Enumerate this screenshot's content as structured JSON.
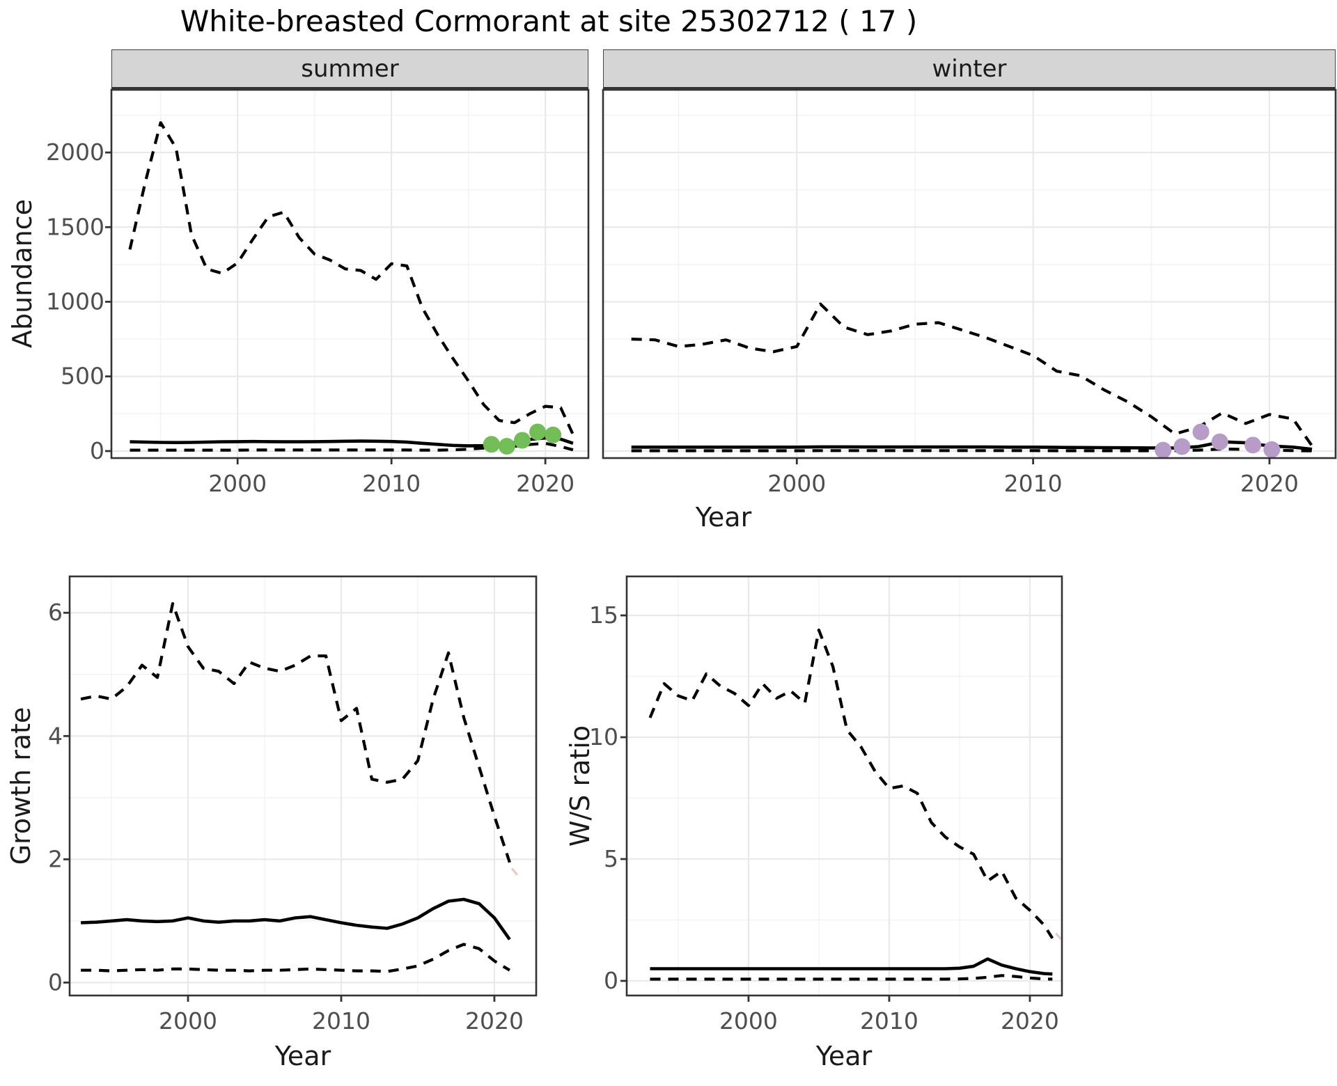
{
  "title": "White-breasted Cormorant at site 25302712 ( 17 )",
  "colors": {
    "summer_points": "#73BD59",
    "winter_points": "#B89CC8",
    "line": "#000000",
    "strip_bg": "#D5D5D5",
    "grid_major": "#E9E9E9",
    "grid_minor": "#F2F2F2",
    "panel_border": "#333333",
    "axis_text": "#4D4D4D"
  },
  "chart_data": [
    {
      "id": "summer",
      "type": "line",
      "title": "summer",
      "xlabel": "Year",
      "ylabel": "Abundance",
      "xlim": [
        1991.8,
        2022.8
      ],
      "ylim": [
        -47,
        2420
      ],
      "x_ticks": [
        2000,
        2010,
        2020
      ],
      "y_ticks": [
        0,
        500,
        1000,
        1500,
        2000
      ],
      "x_minor": [
        1995,
        2005,
        2015
      ],
      "y_minor": [
        250,
        750,
        1250,
        1750,
        2250
      ],
      "grid": true,
      "legend": "none",
      "x": [
        1993,
        1994,
        1995,
        1996,
        1997,
        1998,
        1999,
        2000,
        2001,
        2002,
        2003,
        2004,
        2005,
        2006,
        2007,
        2008,
        2009,
        2010,
        2011,
        2012,
        2013,
        2014,
        2015,
        2016,
        2017,
        2018,
        2019,
        2020,
        2021,
        2021.8
      ],
      "series": [
        {
          "name": "upper_95ci",
          "style": "dashed",
          "values": [
            1350,
            1800,
            2200,
            2030,
            1450,
            1220,
            1190,
            1260,
            1420,
            1570,
            1600,
            1430,
            1320,
            1280,
            1220,
            1210,
            1150,
            1255,
            1240,
            960,
            780,
            620,
            470,
            310,
            205,
            190,
            250,
            300,
            290,
            110
          ]
        },
        {
          "name": "median",
          "style": "solid",
          "values": [
            62,
            60,
            58,
            57,
            58,
            60,
            62,
            63,
            64,
            63,
            62,
            62,
            63,
            64,
            66,
            67,
            66,
            64,
            60,
            52,
            45,
            38,
            35,
            36,
            44,
            56,
            78,
            88,
            80,
            52
          ]
        },
        {
          "name": "lower_95ci",
          "style": "dashed",
          "values": [
            6,
            6,
            6,
            6,
            6,
            6,
            6,
            6,
            7,
            7,
            7,
            7,
            7,
            7,
            7,
            7,
            7,
            7,
            7,
            6,
            6,
            8,
            12,
            20,
            28,
            32,
            44,
            52,
            30,
            8
          ]
        }
      ],
      "points": {
        "name": "observed-summer-counts",
        "color": "#73BD59",
        "x": [
          2016.5,
          2017.5,
          2018.5,
          2019.5,
          2020.5
        ],
        "y": [
          45,
          32,
          72,
          128,
          108
        ]
      }
    },
    {
      "id": "winter",
      "type": "line",
      "title": "winter",
      "xlabel": "Year",
      "ylabel": "Abundance",
      "xlim": [
        1991.8,
        2022.8
      ],
      "ylim": [
        -47,
        2420
      ],
      "x_ticks": [
        2000,
        2010,
        2020
      ],
      "y_ticks": [
        0,
        500,
        1000,
        1500,
        2000
      ],
      "x_minor": [
        1995,
        2005,
        2015
      ],
      "y_minor": [
        250,
        750,
        1250,
        1750,
        2250
      ],
      "grid": true,
      "legend": "none",
      "x": [
        1993,
        1994,
        1995,
        1996,
        1997,
        1998,
        1999,
        2000,
        2001,
        2002,
        2003,
        2004,
        2005,
        2006,
        2007,
        2008,
        2009,
        2010,
        2011,
        2012,
        2013,
        2014,
        2015,
        2016,
        2017,
        2018,
        2019,
        2020,
        2021,
        2021.8
      ],
      "series": [
        {
          "name": "upper_95ci",
          "style": "dashed",
          "values": [
            750,
            745,
            700,
            715,
            745,
            690,
            665,
            700,
            985,
            830,
            780,
            805,
            850,
            860,
            810,
            760,
            700,
            640,
            535,
            505,
            410,
            330,
            230,
            115,
            160,
            255,
            185,
            245,
            215,
            35
          ]
        },
        {
          "name": "median",
          "style": "solid",
          "values": [
            26,
            26,
            26,
            26,
            26,
            26,
            26,
            26,
            28,
            28,
            27,
            27,
            27,
            27,
            27,
            27,
            26,
            26,
            25,
            24,
            23,
            22,
            21,
            20,
            30,
            62,
            55,
            34,
            26,
            12
          ]
        },
        {
          "name": "lower_95ci",
          "style": "dashed",
          "values": [
            2,
            2,
            2,
            2,
            2,
            2,
            2,
            2,
            3,
            3,
            3,
            3,
            3,
            3,
            3,
            3,
            3,
            3,
            2,
            2,
            2,
            2,
            2,
            3,
            6,
            14,
            11,
            6,
            3,
            1
          ]
        }
      ],
      "points": {
        "name": "observed-winter-counts",
        "color": "#B89CC8",
        "x": [
          2015.5,
          2016.3,
          2017.1,
          2017.9,
          2019.3,
          2020.1
        ],
        "y": [
          6,
          30,
          128,
          62,
          40,
          10
        ]
      }
    },
    {
      "id": "growth",
      "type": "line",
      "title": "",
      "xlabel": "Year",
      "ylabel": "Growth rate",
      "xlim": [
        1992.27,
        2022.73
      ],
      "ylim": [
        -0.21,
        6.59
      ],
      "x_ticks": [
        2000,
        2010,
        2020
      ],
      "y_ticks": [
        0,
        2,
        4,
        6
      ],
      "x_minor": [
        1995,
        2005,
        2015
      ],
      "y_minor": [
        1,
        3,
        5
      ],
      "grid": true,
      "legend": "none",
      "x": [
        1993,
        1994,
        1995,
        1996,
        1997,
        1998,
        1999,
        2000,
        2001,
        2002,
        2003,
        2004,
        2005,
        2006,
        2007,
        2008,
        2009,
        2010,
        2011,
        2012,
        2013,
        2014,
        2015,
        2016,
        2017,
        2018,
        2019,
        2020,
        2021
      ],
      "series": [
        {
          "name": "upper_95ci",
          "style": "dashed",
          "values": [
            4.6,
            4.65,
            4.6,
            4.8,
            5.15,
            4.95,
            6.15,
            5.45,
            5.1,
            5.05,
            4.85,
            5.2,
            5.1,
            5.05,
            5.15,
            5.3,
            5.3,
            4.25,
            4.45,
            3.3,
            3.25,
            3.3,
            3.6,
            4.6,
            5.35,
            4.3,
            3.5,
            2.7,
            1.95
          ]
        },
        {
          "name": "median",
          "style": "solid",
          "values": [
            0.97,
            0.98,
            1.0,
            1.02,
            1.0,
            0.99,
            1.0,
            1.05,
            1.0,
            0.98,
            1.0,
            1.0,
            1.02,
            1.0,
            1.05,
            1.07,
            1.02,
            0.97,
            0.93,
            0.9,
            0.88,
            0.95,
            1.05,
            1.2,
            1.32,
            1.35,
            1.28,
            1.05,
            0.7
          ]
        },
        {
          "name": "lower_95ci",
          "style": "dashed",
          "values": [
            0.2,
            0.2,
            0.19,
            0.2,
            0.21,
            0.2,
            0.22,
            0.22,
            0.21,
            0.2,
            0.2,
            0.19,
            0.2,
            0.2,
            0.21,
            0.22,
            0.21,
            0.2,
            0.19,
            0.19,
            0.18,
            0.22,
            0.27,
            0.38,
            0.52,
            0.62,
            0.55,
            0.35,
            0.2
          ]
        }
      ],
      "tail": {
        "name": "faint-tail",
        "color": "#EFC9C9",
        "x": [
          2021.15,
          2021.65
        ],
        "y": [
          1.85,
          1.7
        ]
      },
      "points": null
    },
    {
      "id": "ws",
      "type": "line",
      "title": "",
      "xlabel": "Year",
      "ylabel": "W/S ratio",
      "xlim": [
        1991.34,
        2022.28
      ],
      "ylim": [
        -0.6,
        16.6
      ],
      "x_ticks": [
        2000,
        2010,
        2020
      ],
      "y_ticks": [
        0,
        5,
        10,
        15
      ],
      "x_minor": [
        1995,
        2005,
        2015
      ],
      "y_minor": [
        2.5,
        7.5,
        12.5
      ],
      "grid": true,
      "legend": "none",
      "x": [
        1993,
        1994,
        1995,
        1996,
        1997,
        1998,
        1999,
        2000,
        2001,
        2002,
        2003,
        2004,
        2005,
        2006,
        2007,
        2008,
        2009,
        2010,
        2011,
        2012,
        2013,
        2014,
        2015,
        2016,
        2017,
        2018,
        2019,
        2020,
        2021,
        2021.6
      ],
      "series": [
        {
          "name": "upper_95ci",
          "style": "dashed",
          "values": [
            10.8,
            12.2,
            11.7,
            11.5,
            12.6,
            12.1,
            11.8,
            11.3,
            12.2,
            11.6,
            11.9,
            11.4,
            14.4,
            12.9,
            10.3,
            9.6,
            8.6,
            7.9,
            8.0,
            7.7,
            6.5,
            5.9,
            5.5,
            5.2,
            4.1,
            4.5,
            3.4,
            2.9,
            2.3,
            1.75
          ]
        },
        {
          "name": "median",
          "style": "solid",
          "values": [
            0.5,
            0.5,
            0.5,
            0.5,
            0.5,
            0.5,
            0.5,
            0.5,
            0.5,
            0.5,
            0.5,
            0.5,
            0.5,
            0.5,
            0.5,
            0.5,
            0.5,
            0.5,
            0.5,
            0.5,
            0.5,
            0.5,
            0.52,
            0.6,
            0.9,
            0.65,
            0.5,
            0.38,
            0.3,
            0.28
          ]
        },
        {
          "name": "lower_95ci",
          "style": "dashed",
          "values": [
            0.07,
            0.07,
            0.07,
            0.07,
            0.07,
            0.07,
            0.07,
            0.07,
            0.07,
            0.07,
            0.07,
            0.07,
            0.07,
            0.07,
            0.07,
            0.07,
            0.07,
            0.07,
            0.07,
            0.07,
            0.07,
            0.07,
            0.08,
            0.1,
            0.15,
            0.22,
            0.18,
            0.12,
            0.08,
            0.07
          ]
        }
      ],
      "tail": {
        "name": "faint-tail",
        "color": "#E3CDCD",
        "x": [
          2021.85,
          2022.2
        ],
        "y": [
          1.95,
          1.72
        ]
      },
      "points": null
    }
  ]
}
